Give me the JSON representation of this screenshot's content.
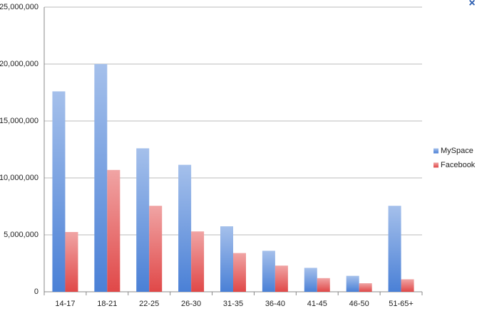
{
  "chart_data": {
    "type": "bar",
    "categories": [
      "14-17",
      "18-21",
      "22-25",
      "26-30",
      "31-35",
      "36-40",
      "41-45",
      "46-50",
      "51-65+"
    ],
    "series": [
      {
        "name": "MySpace",
        "color": "#4a80d6",
        "values": [
          17600000,
          20000000,
          12600000,
          11150000,
          5750000,
          3600000,
          2100000,
          1400000,
          7550000
        ]
      },
      {
        "name": "Facebook",
        "color": "#e04848",
        "values": [
          5250000,
          10700000,
          7550000,
          5300000,
          3400000,
          2300000,
          1200000,
          750000,
          1100000
        ]
      }
    ],
    "ylim": [
      0,
      25000000
    ],
    "yticks": [
      0,
      {
        "value": 5000000,
        "label": "5,000,000"
      },
      {
        "value": 10000000,
        "label": "10,000,000"
      },
      {
        "value": 15000000,
        "label": "15,000,000"
      },
      {
        "value": 20000000,
        "label": "20,000,000"
      },
      {
        "value": 25000000,
        "label": "25,000,000"
      }
    ],
    "grid": true,
    "legend": "right"
  },
  "close_button": "×"
}
